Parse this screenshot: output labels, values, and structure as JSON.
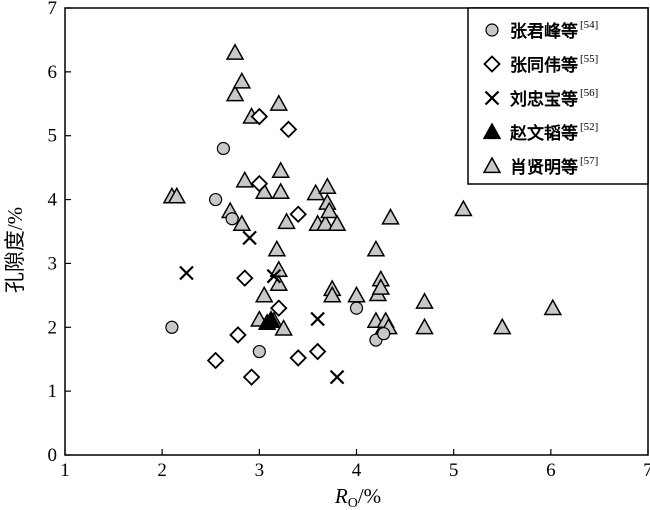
{
  "chart_data": {
    "type": "scatter",
    "xlabel_main": "R",
    "xlabel_sub": "O",
    "xlabel_unit": "/%",
    "ylabel": "孔隙度/%",
    "xlim": [
      1,
      7
    ],
    "ylim": [
      0,
      7
    ],
    "xticks": [
      "1",
      "2",
      "3",
      "4",
      "5",
      "6",
      "7"
    ],
    "yticks": [
      "0",
      "1",
      "2",
      "3",
      "4",
      "5",
      "6",
      "7"
    ],
    "legend_position": "top-right",
    "series": [
      {
        "name": "张君峰等",
        "ref": "[54]",
        "marker": "circle",
        "color": "#c8c8c8",
        "points": [
          [
            2.1,
            2.0
          ],
          [
            2.55,
            4.0
          ],
          [
            2.63,
            4.8
          ],
          [
            2.72,
            3.7
          ],
          [
            3.0,
            1.62
          ],
          [
            4.0,
            2.3
          ],
          [
            4.2,
            1.8
          ],
          [
            4.28,
            1.9
          ]
        ]
      },
      {
        "name": "张同伟等",
        "ref": "[55]",
        "marker": "diamond",
        "color": "#ffffff",
        "points": [
          [
            2.55,
            1.48
          ],
          [
            2.78,
            1.88
          ],
          [
            2.85,
            2.77
          ],
          [
            2.92,
            1.22
          ],
          [
            3.0,
            4.25
          ],
          [
            3.0,
            5.3
          ],
          [
            3.2,
            2.3
          ],
          [
            3.3,
            5.1
          ],
          [
            3.4,
            3.77
          ],
          [
            3.4,
            1.52
          ],
          [
            3.6,
            1.62
          ]
        ]
      },
      {
        "name": "刘忠宝等",
        "ref": "[56]",
        "marker": "x",
        "color": "#000000",
        "points": [
          [
            2.25,
            2.85
          ],
          [
            2.9,
            3.4
          ],
          [
            3.15,
            2.8
          ],
          [
            3.6,
            2.13
          ],
          [
            3.8,
            1.22
          ]
        ]
      },
      {
        "name": "赵文韬等",
        "ref": "[52]",
        "marker": "triangle-filled",
        "color": "#000000",
        "points": [
          [
            3.08,
            2.07
          ],
          [
            3.12,
            2.12
          ]
        ]
      },
      {
        "name": "肖贤明等",
        "ref": "[57]",
        "marker": "triangle",
        "color": "#c8c8c8",
        "points": [
          [
            2.1,
            4.05
          ],
          [
            2.15,
            4.05
          ],
          [
            2.7,
            3.82
          ],
          [
            2.75,
            5.65
          ],
          [
            2.75,
            6.3
          ],
          [
            2.82,
            5.85
          ],
          [
            2.82,
            3.62
          ],
          [
            2.85,
            4.3
          ],
          [
            2.92,
            5.3
          ],
          [
            3.0,
            2.12
          ],
          [
            3.05,
            2.5
          ],
          [
            3.05,
            4.12
          ],
          [
            3.15,
            2.1
          ],
          [
            3.18,
            3.22
          ],
          [
            3.2,
            2.9
          ],
          [
            3.2,
            2.68
          ],
          [
            3.22,
            4.45
          ],
          [
            3.22,
            4.12
          ],
          [
            3.2,
            5.5
          ],
          [
            3.25,
            1.98
          ],
          [
            3.28,
            3.65
          ],
          [
            3.58,
            4.1
          ],
          [
            3.6,
            3.62
          ],
          [
            3.68,
            3.62
          ],
          [
            3.7,
            4.2
          ],
          [
            3.7,
            3.95
          ],
          [
            3.72,
            3.82
          ],
          [
            3.75,
            2.6
          ],
          [
            3.75,
            2.5
          ],
          [
            3.8,
            3.62
          ],
          [
            4.0,
            2.5
          ],
          [
            4.2,
            3.22
          ],
          [
            4.2,
            2.1
          ],
          [
            4.22,
            2.52
          ],
          [
            4.25,
            2.75
          ],
          [
            4.25,
            2.62
          ],
          [
            4.28,
            2.0
          ],
          [
            4.3,
            2.1
          ],
          [
            4.33,
            2.0
          ],
          [
            4.35,
            3.72
          ],
          [
            4.7,
            2.4
          ],
          [
            4.7,
            2.0
          ],
          [
            5.1,
            3.85
          ],
          [
            5.5,
            2.0
          ],
          [
            6.02,
            2.3
          ]
        ]
      }
    ]
  }
}
